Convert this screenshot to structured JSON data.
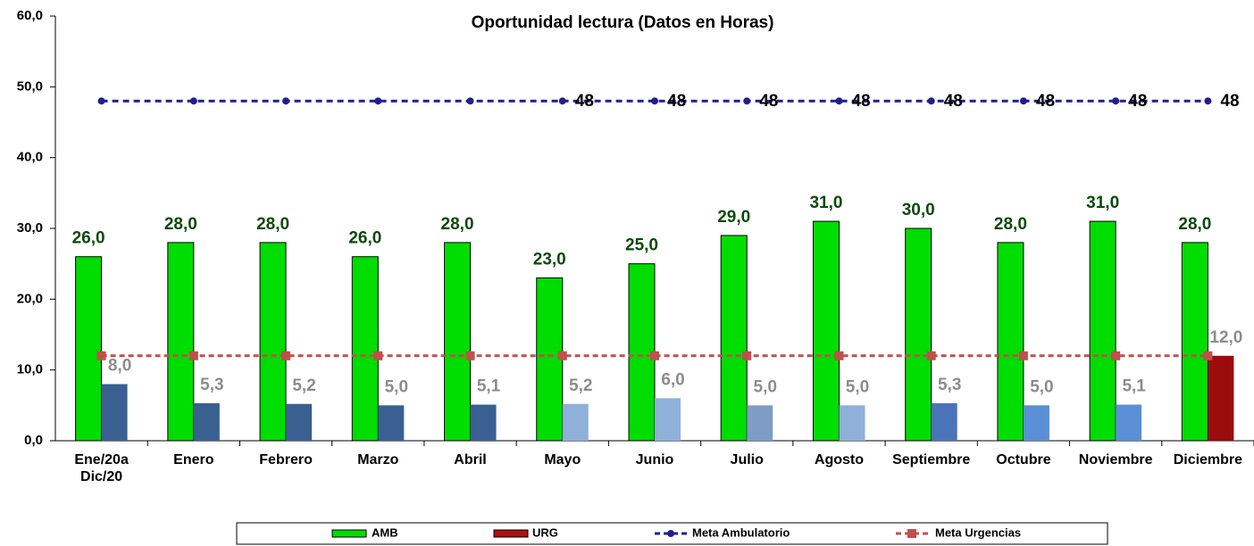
{
  "chart_data": {
    "type": "bar",
    "title": "Oportunidad lectura (Datos en Horas)",
    "categories": [
      "Ene/20a\nDic/20",
      "Enero",
      "Febrero",
      "Marzo",
      "Abril",
      "Mayo",
      "Junio",
      "Julio",
      "Agosto",
      "Septiembre",
      "Octubre",
      "Noviembre",
      "Diciembre"
    ],
    "series": [
      {
        "name": "AMB",
        "type": "bar",
        "color": "#00dd00",
        "values": [
          26,
          28,
          28,
          26,
          28,
          23,
          25,
          29,
          31,
          30,
          28,
          31,
          28
        ],
        "value_labels": [
          "26,0",
          "28,0",
          "28,0",
          "26,0",
          "28,0",
          "23,0",
          "25,0",
          "29,0",
          "31,0",
          "30,0",
          "28,0",
          "31,0",
          "28,0"
        ]
      },
      {
        "name": "URG",
        "type": "bar",
        "color": "#b01010",
        "colors": [
          "#3a6091",
          "#3a6091",
          "#3a6091",
          "#3a6091",
          "#3a6091",
          "#8fb0d8",
          "#8fb0d8",
          "#7f9cc4",
          "#8fb0d8",
          "#4a74b8",
          "#5b8fd6",
          "#5b8fd6",
          "#9b0c0c"
        ],
        "values": [
          8,
          5.3,
          5.2,
          5,
          5.1,
          5.2,
          6,
          5,
          5,
          5.3,
          5,
          5.1,
          12
        ],
        "value_labels": [
          "8,0",
          "5,3",
          "5,2",
          "5,0",
          "5,1",
          "5,2",
          "6,0",
          "5,0",
          "5,0",
          "5,3",
          "5,0",
          "5,1",
          "12,0"
        ]
      },
      {
        "name": "Meta Ambulatorio",
        "type": "line",
        "color": "#1f1f8f",
        "values": [
          48,
          48,
          48,
          48,
          48,
          48,
          48,
          48,
          48,
          48,
          48,
          48,
          48
        ],
        "value_labels": [
          null,
          null,
          null,
          null,
          null,
          "48",
          "48",
          "48",
          "48",
          "48",
          "48",
          "48",
          "48"
        ]
      },
      {
        "name": "Meta Urgencias",
        "type": "line",
        "color": "#c0504d",
        "values": [
          12,
          12,
          12,
          12,
          12,
          12,
          12,
          12,
          12,
          12,
          12,
          12,
          12
        ]
      }
    ],
    "ylim": [
      0,
      60
    ],
    "yticks": [
      {
        "value": 0,
        "label": "0,0"
      },
      {
        "value": 10,
        "label": "10,0"
      },
      {
        "value": 20,
        "label": "20,0"
      },
      {
        "value": 30,
        "label": "30,0"
      },
      {
        "value": 40,
        "label": "40,0"
      },
      {
        "value": 50,
        "label": "50,0"
      },
      {
        "value": 60,
        "label": "60,0"
      }
    ],
    "legend": "bottom"
  }
}
